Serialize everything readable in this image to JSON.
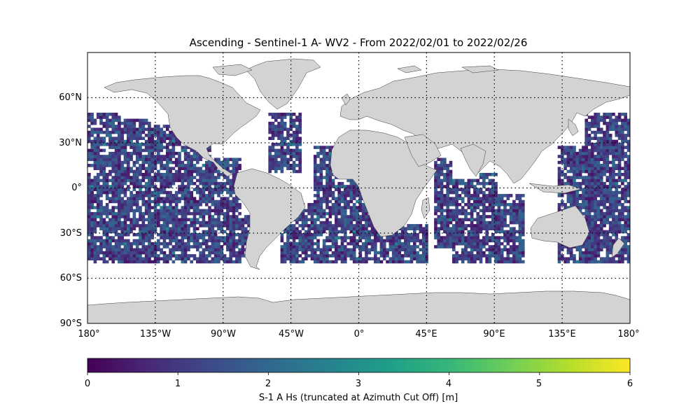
{
  "title": "Ascending - Sentinel-1 A- WV2 - From 2022/02/01 to 2022/02/26",
  "latitude_labels": [
    "60°N",
    "30°N",
    "0°",
    "30°S",
    "60°S",
    "90°S"
  ],
  "longitude_labels": [
    "180°",
    "135°W",
    "90°W",
    "45°W",
    "0°",
    "45°E",
    "90°E",
    "135°E",
    "180°"
  ],
  "colorbar": {
    "label": "S-1 A Hs (truncated at Azimuth Cut Off) [m]",
    "ticks": [
      "0",
      "1",
      "2",
      "3",
      "4",
      "5",
      "6"
    ],
    "range": [
      0,
      6
    ],
    "colormap": "viridis",
    "colors": [
      "#440154",
      "#482878",
      "#3e4989",
      "#31688e",
      "#26828e",
      "#1f9e89",
      "#35b779",
      "#6ece58",
      "#b5de2b",
      "#fde725"
    ]
  },
  "map": {
    "projection": "PlateCarree",
    "lon_range": [
      -180,
      180
    ],
    "lat_range": [
      -90,
      90
    ],
    "land_color": "#d3d3d3",
    "ocean_color": "#ffffff",
    "gridlines": "dotted",
    "data_lat_range": [
      -50,
      50
    ],
    "cell_size_deg": 2,
    "typical_hs_m": [
      0.3,
      2.0
    ]
  }
}
